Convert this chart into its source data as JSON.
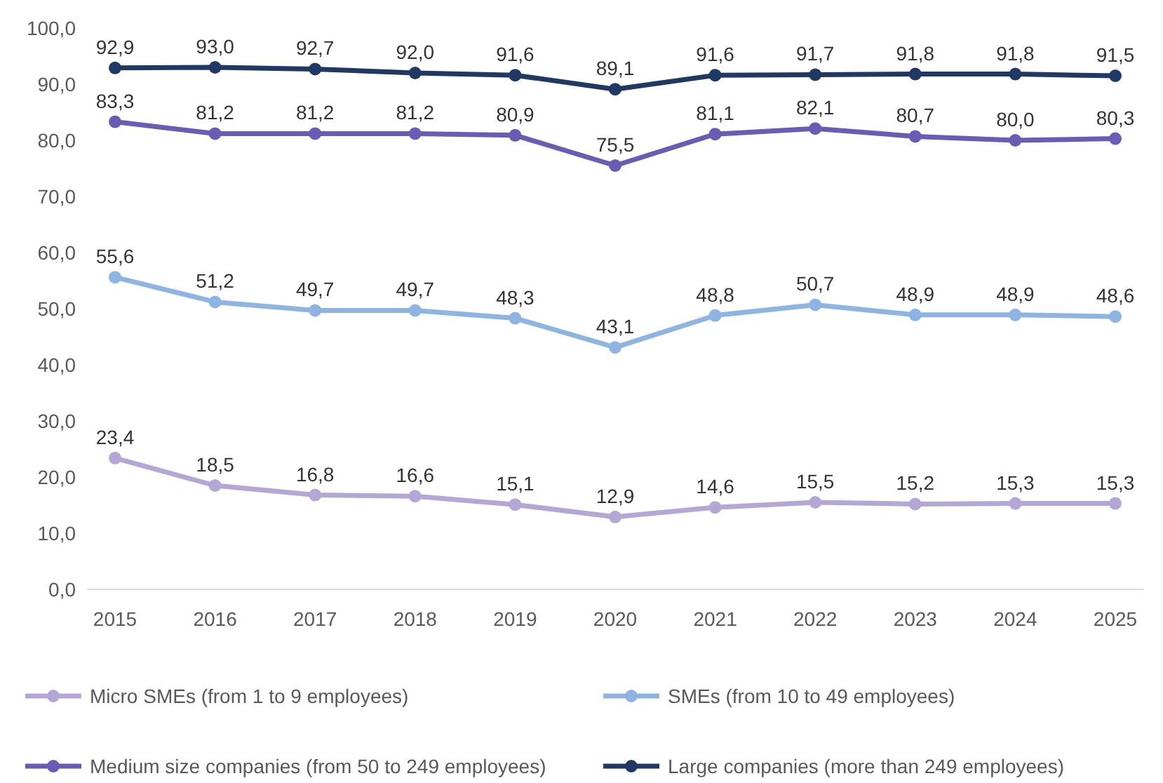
{
  "chart_data": {
    "type": "line",
    "categories": [
      "2015",
      "2016",
      "2017",
      "2018",
      "2019",
      "2020",
      "2021",
      "2022",
      "2023",
      "2024",
      "2025"
    ],
    "ylim": [
      0,
      100
    ],
    "yticks": [
      {
        "value": 0,
        "label": "0,0"
      },
      {
        "value": 10,
        "label": "10,0"
      },
      {
        "value": 20,
        "label": "20,0"
      },
      {
        "value": 30,
        "label": "30,0"
      },
      {
        "value": 40,
        "label": "40,0"
      },
      {
        "value": 50,
        "label": "50,0"
      },
      {
        "value": 60,
        "label": "60,0"
      },
      {
        "value": 70,
        "label": "70,0"
      },
      {
        "value": 80,
        "label": "80,0"
      },
      {
        "value": 90,
        "label": "90,0"
      },
      {
        "value": 100,
        "label": "100,0"
      }
    ],
    "marker": "circle",
    "legend": "bottom",
    "grid": false,
    "series": [
      {
        "name": "Micro SMEs (from 1 to 9 employees)",
        "color": "#b4a7d6",
        "values": [
          23.4,
          18.5,
          16.8,
          16.6,
          15.1,
          12.9,
          14.6,
          15.5,
          15.2,
          15.3,
          15.3
        ],
        "value_labels": [
          "23,4",
          "18,5",
          "16,8",
          "16,6",
          "15,1",
          "12,9",
          "14,6",
          "15,5",
          "15,2",
          "15,3",
          "15,3"
        ]
      },
      {
        "name": "SMEs (from 10 to 49 employees)",
        "color": "#8db4e2",
        "values": [
          55.6,
          51.2,
          49.7,
          49.7,
          48.3,
          43.1,
          48.8,
          50.7,
          48.9,
          48.9,
          48.6
        ],
        "value_labels": [
          "55,6",
          "51,2",
          "49,7",
          "49,7",
          "48,3",
          "43,1",
          "48,8",
          "50,7",
          "48,9",
          "48,9",
          "48,6"
        ]
      },
      {
        "name": "Medium size companies (from 50 to 249 employees)",
        "color": "#6a5bb5",
        "values": [
          83.3,
          81.2,
          81.2,
          81.2,
          80.9,
          75.5,
          81.1,
          82.1,
          80.7,
          80.0,
          80.3
        ],
        "value_labels": [
          "83,3",
          "81,2",
          "81,2",
          "81,2",
          "80,9",
          "75,5",
          "81,1",
          "82,1",
          "80,7",
          "80,0",
          "80,3"
        ]
      },
      {
        "name": "Large companies (more than 249 employees)",
        "color": "#1f3864",
        "values": [
          92.9,
          93.0,
          92.7,
          92.0,
          91.6,
          89.1,
          91.6,
          91.7,
          91.8,
          91.8,
          91.5
        ],
        "value_labels": [
          "92,9",
          "93,0",
          "92,7",
          "92,0",
          "91,6",
          "89,1",
          "91,6",
          "91,7",
          "91,8",
          "91,8",
          "91,5"
        ]
      }
    ]
  }
}
